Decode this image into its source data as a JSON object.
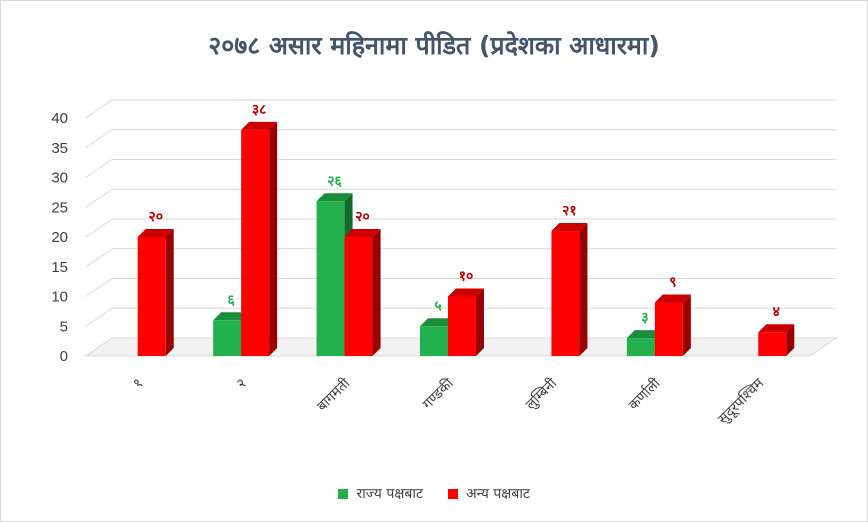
{
  "chart_data": {
    "type": "bar",
    "title": "२०७८ असार महिनामा पीडित (प्रदेशका आधारमा)",
    "categories": [
      "१",
      "२",
      "बागमती",
      "गण्डकी",
      "लुम्बिनी",
      "कर्णाली",
      "सुदूरपश्चिम"
    ],
    "series": [
      {
        "name": "राज्य पक्षबाट",
        "values": [
          0,
          6,
          26,
          5,
          0,
          3,
          0
        ],
        "labels": [
          "",
          "६",
          "२६",
          "५",
          "",
          "३",
          ""
        ],
        "color": "#22b14c"
      },
      {
        "name": "अन्य पक्षबाट",
        "values": [
          20,
          38,
          20,
          10,
          21,
          9,
          4
        ],
        "labels": [
          "२०",
          "३८",
          "२०",
          "१०",
          "२१",
          "९",
          "४"
        ],
        "color": "#ff0000"
      }
    ],
    "ylim": [
      0,
      40
    ],
    "yticks": [
      "0",
      "5",
      "10",
      "15",
      "20",
      "25",
      "30",
      "35",
      "40"
    ],
    "grid": true,
    "legend_position": "bottom"
  }
}
